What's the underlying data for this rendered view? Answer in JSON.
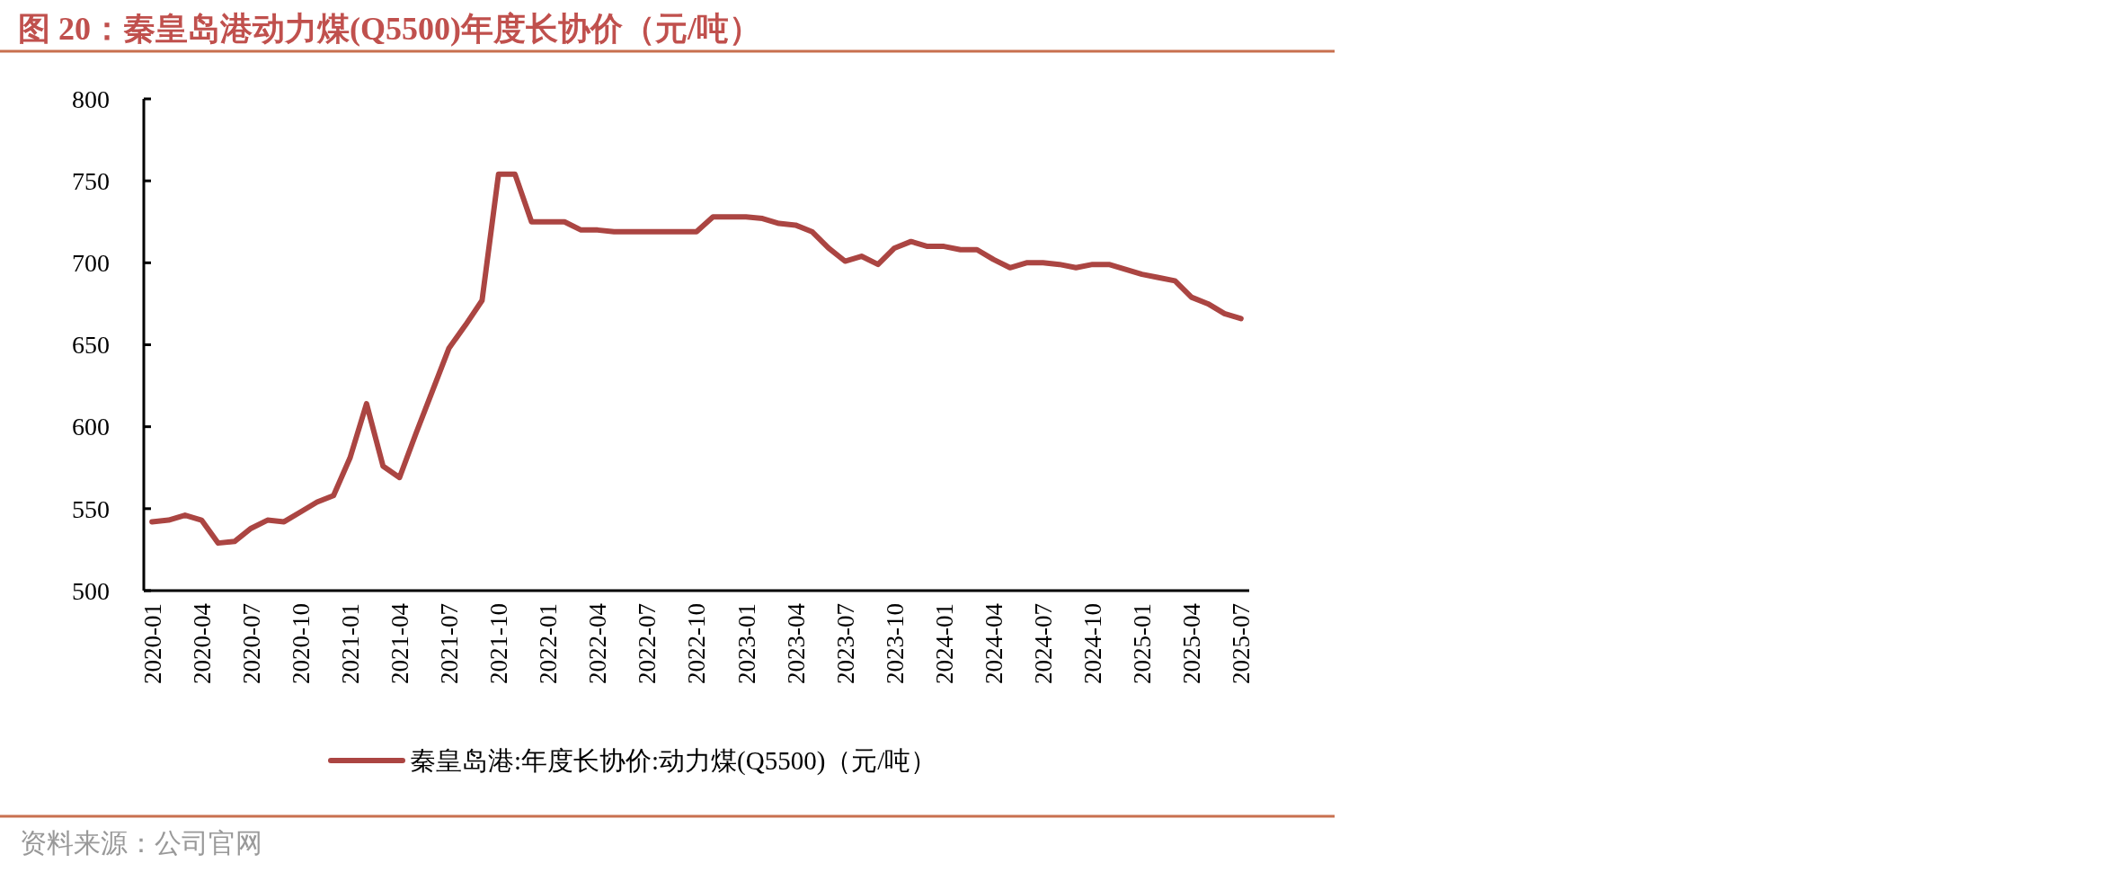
{
  "chart_data": {
    "type": "line",
    "title": "图 20：秦皇岛港动力煤(Q5500)年度长协价（元/吨）",
    "categories": [
      "2020-01",
      null,
      null,
      "2020-04",
      null,
      null,
      "2020-07",
      null,
      null,
      "2020-10",
      null,
      null,
      "2021-01",
      null,
      null,
      "2021-04",
      null,
      null,
      "2021-07",
      null,
      null,
      "2021-10",
      null,
      null,
      "2022-01",
      null,
      null,
      "2022-04",
      null,
      null,
      "2022-07",
      null,
      null,
      "2022-10",
      null,
      null,
      "2023-01",
      null,
      null,
      "2023-04",
      null,
      null,
      "2023-07",
      null,
      null,
      "2023-10",
      null,
      null,
      "2024-01",
      null,
      null,
      "2024-04",
      null,
      null,
      "2024-07",
      null,
      null,
      "2024-10",
      null,
      null,
      "2025-01",
      null,
      null,
      "2025-04",
      null,
      null,
      "2025-07"
    ],
    "series": [
      {
        "name": "秦皇岛港:年度长协价:动力煤(Q5500)（元/吨）",
        "color": "#ab4542",
        "values": [
          542,
          543,
          546,
          543,
          529,
          530,
          538,
          543,
          542,
          548,
          554,
          558,
          581,
          614,
          576,
          569,
          596,
          622,
          648,
          662,
          677,
          754,
          754,
          725,
          725,
          725,
          720,
          720,
          719,
          719,
          719,
          719,
          719,
          719,
          728,
          728,
          728,
          727,
          724,
          723,
          719,
          709,
          701,
          704,
          699,
          709,
          713,
          710,
          710,
          708,
          708,
          702,
          697,
          700,
          700,
          699,
          697,
          699,
          699,
          696,
          693,
          691,
          689,
          679,
          675,
          669,
          666
        ]
      }
    ],
    "ylim": [
      500,
      800
    ],
    "yticks": [
      500,
      550,
      600,
      650,
      700,
      750,
      800
    ],
    "grid": false,
    "legend": "bottom",
    "line_style": "solid",
    "marker": "none",
    "annotations": [
      "资料来源：公司官网"
    ]
  }
}
